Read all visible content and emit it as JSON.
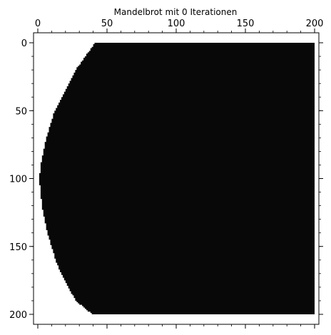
{
  "chart_data": {
    "type": "heatmap",
    "title": "Mandelbrot mit 0 Iterationen",
    "xlabel": "",
    "ylabel": "",
    "xlim": [
      0,
      200
    ],
    "ylim": [
      0,
      200
    ],
    "y_inverted": true,
    "x_axis_position": "top",
    "grid": false,
    "colors": {
      "inside": "#080808",
      "outside": "#ffffff",
      "axes": "#000000"
    },
    "x_ticks": [
      0,
      50,
      100,
      150,
      200
    ],
    "y_ticks": [
      0,
      50,
      100,
      150,
      200
    ],
    "x_minor_step": 10,
    "y_minor_step": 10,
    "region": {
      "description_shape": "disk-boundary-left, straight right edge",
      "boundary_left_x_by_row": [
        [
          0,
          41
        ],
        [
          10,
          34
        ],
        [
          20,
          27
        ],
        [
          30,
          22
        ],
        [
          40,
          17
        ],
        [
          50,
          12
        ],
        [
          60,
          9
        ],
        [
          70,
          6
        ],
        [
          80,
          4
        ],
        [
          90,
          2
        ],
        [
          100,
          1
        ],
        [
          110,
          2
        ],
        [
          120,
          3
        ],
        [
          130,
          5
        ],
        [
          140,
          7
        ],
        [
          150,
          10
        ],
        [
          160,
          13
        ],
        [
          170,
          17
        ],
        [
          180,
          22
        ],
        [
          190,
          28
        ],
        [
          200,
          40
        ]
      ],
      "right_x": 200
    }
  }
}
